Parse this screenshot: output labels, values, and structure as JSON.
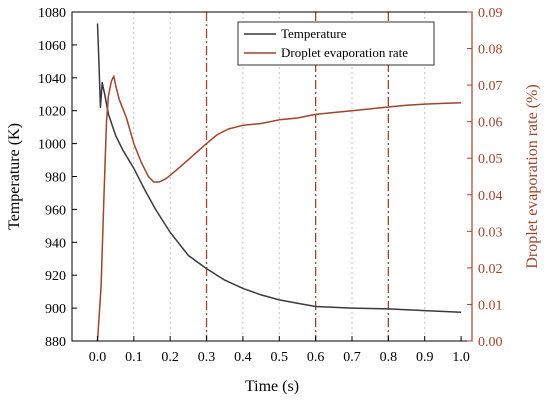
{
  "chart_data": {
    "type": "line",
    "title": "",
    "xlabel": "Time (s)",
    "ylabel": "Temperature (K)",
    "y2label": "Droplet evaporation rate (%)",
    "xlim": [
      -0.07,
      1.03
    ],
    "ylim": [
      880,
      1080
    ],
    "y2lim": [
      0.0,
      0.09
    ],
    "xticks": [
      "0.0",
      "0.1",
      "0.2",
      "0.3",
      "0.4",
      "0.5",
      "0.6",
      "0.7",
      "0.8",
      "0.9",
      "1.0"
    ],
    "yticks": [
      "880",
      "900",
      "920",
      "940",
      "960",
      "980",
      "1000",
      "1020",
      "1040",
      "1060",
      "1080"
    ],
    "y2ticks": [
      "0.00",
      "0.01",
      "0.02",
      "0.03",
      "0.04",
      "0.05",
      "0.06",
      "0.07",
      "0.08",
      "0.09"
    ],
    "vertical_gridlines": [
      0.1,
      0.2,
      0.4,
      0.5,
      0.7,
      0.9
    ],
    "vertical_markers": [
      0.3,
      0.6,
      0.8
    ],
    "legend_position": "top-right",
    "series": [
      {
        "name": "Temperature",
        "axis": "left",
        "color": "#3a3a3a",
        "points": [
          [
            0.0,
            1073
          ],
          [
            0.004,
            1050
          ],
          [
            0.008,
            1022
          ],
          [
            0.013,
            1037
          ],
          [
            0.02,
            1030
          ],
          [
            0.03,
            1018
          ],
          [
            0.05,
            1005
          ],
          [
            0.07,
            996
          ],
          [
            0.1,
            985
          ],
          [
            0.13,
            972
          ],
          [
            0.16,
            960
          ],
          [
            0.2,
            946
          ],
          [
            0.25,
            932
          ],
          [
            0.3,
            924
          ],
          [
            0.35,
            917
          ],
          [
            0.4,
            912
          ],
          [
            0.45,
            908
          ],
          [
            0.5,
            905
          ],
          [
            0.55,
            903
          ],
          [
            0.6,
            901
          ],
          [
            0.7,
            900
          ],
          [
            0.8,
            899.5
          ],
          [
            0.9,
            898.5
          ],
          [
            1.0,
            897.5
          ]
        ]
      },
      {
        "name": "Droplet evaporation rate",
        "axis": "right",
        "color": "#a0442c",
        "points": [
          [
            0.0,
            0.0
          ],
          [
            0.01,
            0.015
          ],
          [
            0.018,
            0.04
          ],
          [
            0.025,
            0.06
          ],
          [
            0.03,
            0.067
          ],
          [
            0.038,
            0.071
          ],
          [
            0.045,
            0.0725
          ],
          [
            0.05,
            0.07
          ],
          [
            0.06,
            0.066
          ],
          [
            0.08,
            0.061
          ],
          [
            0.1,
            0.054
          ],
          [
            0.12,
            0.049
          ],
          [
            0.14,
            0.045
          ],
          [
            0.155,
            0.0435
          ],
          [
            0.17,
            0.0435
          ],
          [
            0.19,
            0.0445
          ],
          [
            0.22,
            0.047
          ],
          [
            0.26,
            0.0505
          ],
          [
            0.3,
            0.054
          ],
          [
            0.33,
            0.0565
          ],
          [
            0.36,
            0.058
          ],
          [
            0.4,
            0.059
          ],
          [
            0.45,
            0.0595
          ],
          [
            0.5,
            0.0605
          ],
          [
            0.55,
            0.061
          ],
          [
            0.6,
            0.062
          ],
          [
            0.65,
            0.0625
          ],
          [
            0.7,
            0.063
          ],
          [
            0.75,
            0.0635
          ],
          [
            0.8,
            0.064
          ],
          [
            0.85,
            0.0645
          ],
          [
            0.9,
            0.0648
          ],
          [
            0.95,
            0.065
          ],
          [
            1.0,
            0.0652
          ]
        ]
      }
    ]
  }
}
